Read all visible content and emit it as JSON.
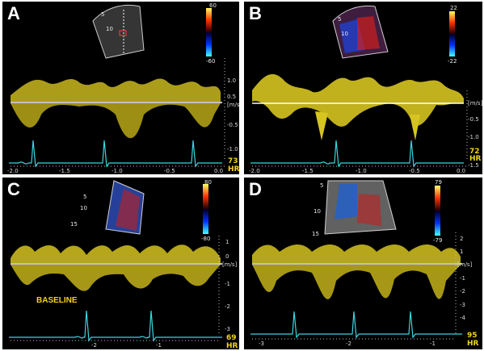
{
  "panels": [
    {
      "label": "A",
      "colorbar": {
        "top": "60",
        "bottom": "-60"
      },
      "yticks": [
        "1.0",
        "0.5",
        "[m/s]",
        "-0.5",
        "-1.0"
      ],
      "xticks": [
        "-2.0",
        "-1.5",
        "-1.0",
        "-0.5",
        "0.0"
      ],
      "hr_value": "73",
      "hr_label": "HR",
      "depth_ticks": [
        "5",
        "10"
      ]
    },
    {
      "label": "B",
      "colorbar": {
        "top": "22",
        "bottom": "-22"
      },
      "yticks": [
        "[m/s]",
        "-0.5",
        "-1.0",
        "-1.5"
      ],
      "xticks": [
        "-2.0",
        "-1.5",
        "-1.0",
        "-0.5",
        "0.0"
      ],
      "hr_value": "72",
      "hr_label": "HR",
      "depth_ticks": [
        "5",
        "10"
      ]
    },
    {
      "label": "C",
      "colorbar": {
        "top": "80",
        "bottom": "-80"
      },
      "yticks": [
        "1",
        "0",
        "[m/s]",
        "-1",
        "-2",
        "-3"
      ],
      "xticks": [
        "-2",
        "-1"
      ],
      "hr_value": "69",
      "hr_label": "HR",
      "depth_ticks": [
        "5",
        "10",
        "15"
      ],
      "annotation": "BASELINE"
    },
    {
      "label": "D",
      "colorbar": {
        "top": "79",
        "bottom": "-79"
      },
      "yticks": [
        "2",
        "1",
        "[m/s]",
        "-1",
        "-2",
        "-3",
        "-4"
      ],
      "xticks": [
        "-3",
        "-2",
        "-1"
      ],
      "hr_value": "95",
      "hr_label": "HR",
      "depth_ticks": [
        "5",
        "10",
        "15"
      ]
    }
  ]
}
